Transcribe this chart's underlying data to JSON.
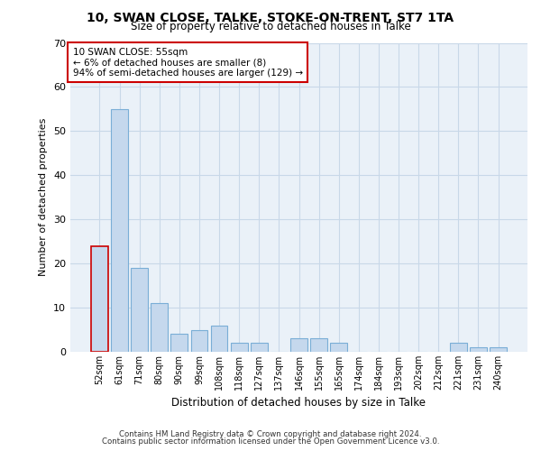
{
  "title1": "10, SWAN CLOSE, TALKE, STOKE-ON-TRENT, ST7 1TA",
  "title2": "Size of property relative to detached houses in Talke",
  "xlabel": "Distribution of detached houses by size in Talke",
  "ylabel": "Number of detached properties",
  "categories": [
    "52sqm",
    "61sqm",
    "71sqm",
    "80sqm",
    "90sqm",
    "99sqm",
    "108sqm",
    "118sqm",
    "127sqm",
    "137sqm",
    "146sqm",
    "155sqm",
    "165sqm",
    "174sqm",
    "184sqm",
    "193sqm",
    "202sqm",
    "212sqm",
    "221sqm",
    "231sqm",
    "240sqm"
  ],
  "values": [
    24,
    55,
    19,
    11,
    4,
    5,
    6,
    2,
    2,
    0,
    3,
    3,
    2,
    0,
    0,
    0,
    0,
    0,
    2,
    1,
    1
  ],
  "bar_color": "#c5d8ed",
  "bar_edgecolor": "#7aaed6",
  "highlight_bar_index": 0,
  "highlight_bar_edgecolor": "#cc0000",
  "annotation_box_text": "10 SWAN CLOSE: 55sqm\n← 6% of detached houses are smaller (8)\n94% of semi-detached houses are larger (129) →",
  "ylim": [
    0,
    70
  ],
  "yticks": [
    0,
    10,
    20,
    30,
    40,
    50,
    60,
    70
  ],
  "grid_color": "#c8d8e8",
  "bg_color": "#eaf1f8",
  "footer1": "Contains HM Land Registry data © Crown copyright and database right 2024.",
  "footer2": "Contains public sector information licensed under the Open Government Licence v3.0."
}
